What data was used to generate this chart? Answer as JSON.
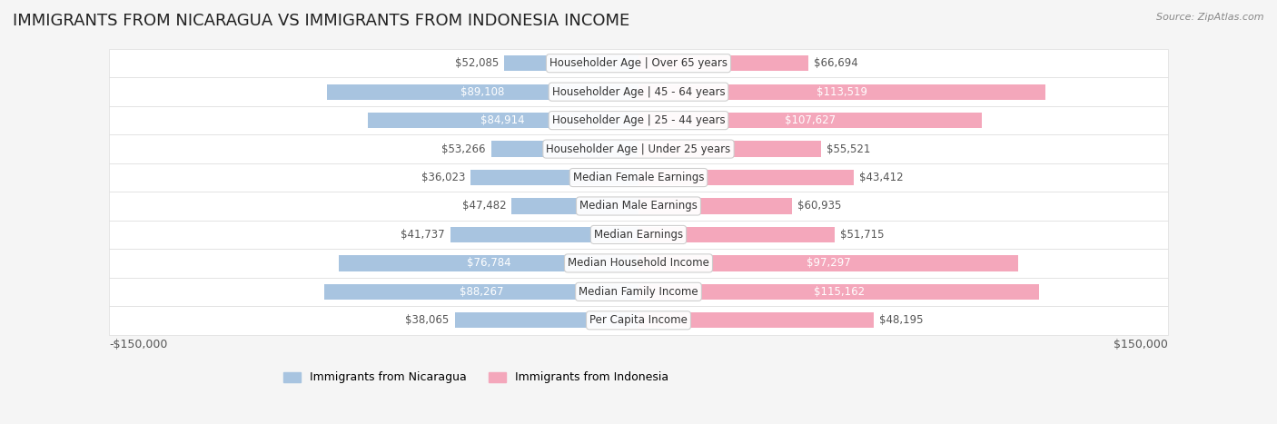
{
  "title": "IMMIGRANTS FROM NICARAGUA VS IMMIGRANTS FROM INDONESIA INCOME",
  "source": "Source: ZipAtlas.com",
  "categories": [
    "Per Capita Income",
    "Median Family Income",
    "Median Household Income",
    "Median Earnings",
    "Median Male Earnings",
    "Median Female Earnings",
    "Householder Age | Under 25 years",
    "Householder Age | 25 - 44 years",
    "Householder Age | 45 - 64 years",
    "Householder Age | Over 65 years"
  ],
  "nicaragua_values": [
    38065,
    88267,
    76784,
    41737,
    47482,
    36023,
    53266,
    84914,
    89108,
    52085
  ],
  "indonesia_values": [
    48195,
    115162,
    97297,
    51715,
    60935,
    43412,
    55521,
    107627,
    113519,
    66694
  ],
  "nicaragua_labels": [
    "$38,065",
    "$88,267",
    "$76,784",
    "$41,737",
    "$47,482",
    "$36,023",
    "$53,266",
    "$84,914",
    "$89,108",
    "$52,085"
  ],
  "indonesia_labels": [
    "$48,195",
    "$115,162",
    "$97,297",
    "$51,715",
    "$60,935",
    "$43,412",
    "$55,521",
    "$107,627",
    "$113,519",
    "$66,694"
  ],
  "nicaragua_color_bar": "#a8c4e0",
  "nicaragua_color_dark": "#6a9ec5",
  "indonesia_color_bar": "#f4a7bb",
  "indonesia_color_dark": "#e8567a",
  "nicaragua_label_dark_threshold": 70000,
  "indonesia_label_dark_threshold": 90000,
  "max_value": 150000,
  "background_color": "#f5f5f5",
  "row_bg_color": "#ffffff",
  "row_alt_color": "#f0f0f0",
  "title_fontsize": 13,
  "label_fontsize": 8.5,
  "category_fontsize": 8.5,
  "axis_label_fontsize": 9,
  "legend_fontsize": 9,
  "x_axis_labels": [
    "-$150,000",
    "$150,000"
  ]
}
